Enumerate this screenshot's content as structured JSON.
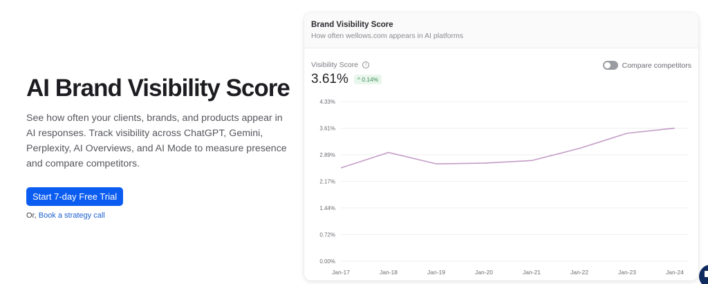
{
  "hero": {
    "title": "AI Brand Visibility Score",
    "description": "See how often your clients, brands, and products appear in AI responses. Track visibility across ChatGPT, Gemini, Perplexity, AI Overviews, and AI Mode to measure presence and compare competitors.",
    "cta_label": "Start 7-day Free Trial",
    "alt_prefix": "Or,",
    "alt_link": "Book a strategy call"
  },
  "card": {
    "title": "Brand Visibility Score",
    "subtitle": "How often wellows.com appears in AI platforms",
    "metric_label": "Visibility Score",
    "info_icon": "info-icon",
    "metric_value": "3.61%",
    "delta": "^ 0.14%",
    "delta_color": "#3a8c55",
    "toggle_label": "Compare competitors",
    "toggle_state": "off"
  },
  "chart_data": {
    "type": "line",
    "title": "Brand Visibility Score",
    "xlabel": "",
    "ylabel": "Visibility Score",
    "categories": [
      "Jan-17",
      "Jan-18",
      "Jan-19",
      "Jan-20",
      "Jan-21",
      "Jan-22",
      "Jan-23",
      "Jan-24"
    ],
    "series": [
      {
        "name": "wellows.com",
        "color": "#c39ac4",
        "values": [
          2.53,
          2.95,
          2.64,
          2.66,
          2.73,
          3.06,
          3.47,
          3.61
        ]
      }
    ],
    "y_ticks": [
      "4.33%",
      "3.61%",
      "2.89%",
      "2.17%",
      "1.44%",
      "0.72%",
      "0.00%"
    ],
    "ylim": [
      0,
      4.33
    ],
    "grid": true,
    "legend": "none"
  },
  "colors": {
    "accent": "#0b5cf0",
    "line": "#c39ac4",
    "grid": "#efeff1"
  }
}
